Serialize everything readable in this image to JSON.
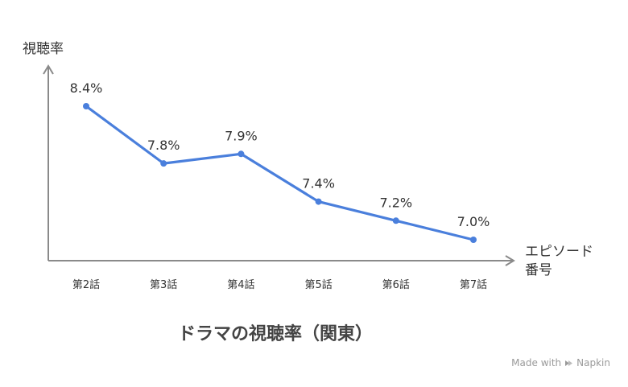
{
  "chart_data": {
    "type": "line",
    "title": "ドラマの視聴率（関東）",
    "xlabel": "エピソード番号",
    "ylabel": "視聴率",
    "categories": [
      "第2話",
      "第3話",
      "第4話",
      "第5話",
      "第6話",
      "第7話"
    ],
    "series": [
      {
        "values": [
          8.4,
          7.8,
          7.9,
          7.4,
          7.2,
          7.0
        ],
        "labels": [
          "8.4%",
          "7.8%",
          "7.9%",
          "7.4%",
          "7.2%",
          "7.0%"
        ],
        "color": "#4a7fdc"
      }
    ],
    "grid": false,
    "legend": "none"
  },
  "watermark": {
    "prefix": "Made with",
    "brand": "Napkin"
  }
}
